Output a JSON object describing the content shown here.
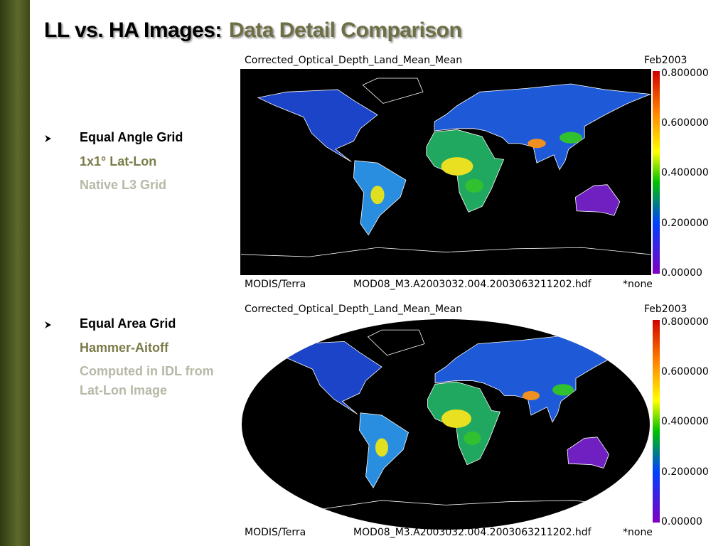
{
  "title": {
    "main": "LL vs. HA Images:",
    "sub": "Data Detail Comparison"
  },
  "bullets": [
    {
      "heading": "Equal Angle Grid",
      "lines": [
        "1x1° Lat-Lon",
        "Native L3 Grid"
      ]
    },
    {
      "heading": "Equal Area Grid",
      "lines": [
        "Hammer-Aitoff",
        "Computed in IDL from Lat-Lon Image"
      ]
    }
  ],
  "panels": [
    {
      "variable": "Corrected_Optical_Depth_Land_Mean_Mean",
      "date": "Feb2003",
      "colorbar": [
        "0.800000",
        "0.600000",
        "0.400000",
        "0.200000",
        "0.00000"
      ],
      "instrument": "MODIS/Terra",
      "file": "MOD08_M3.A2003032.004.2003063211202.hdf",
      "scale": "*none"
    },
    {
      "variable": "Corrected_Optical_Depth_Land_Mean_Mean",
      "date": "Feb2003",
      "colorbar": [
        "0.800000",
        "0.600000",
        "0.400000",
        "0.200000",
        "0.00000"
      ],
      "instrument": "MODIS/Terra",
      "file": "MOD08_M3.A2003032.004.2003063211202.hdf",
      "scale": "*none"
    }
  ]
}
